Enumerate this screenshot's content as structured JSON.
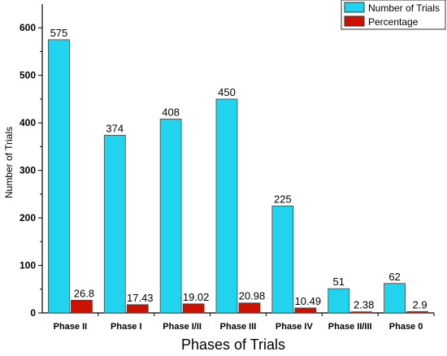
{
  "chart_data": {
    "type": "bar",
    "xlabel": "Phases of Trials",
    "ylabel": "Number of Trials",
    "ylim": [
      0,
      650
    ],
    "yticks": [
      "0",
      "100",
      "200",
      "300",
      "400",
      "500",
      "600"
    ],
    "legend_position": "top-right",
    "categories": [
      "Phase II",
      "Phase I",
      "Phase I/II",
      "Phase III",
      "Phase IV",
      "Phase II/III",
      "Phase 0"
    ],
    "series": [
      {
        "name": "Number of Trials",
        "color": "#22d3ee",
        "values": [
          575,
          374,
          408,
          450,
          225,
          51,
          62
        ],
        "labels": [
          "575",
          "374",
          "408",
          "450",
          "225",
          "51",
          "62"
        ]
      },
      {
        "name": "Percentage",
        "color": "#cc1100",
        "values": [
          26.8,
          17.43,
          19.02,
          20.98,
          10.49,
          2.38,
          2.9
        ],
        "labels": [
          "26.8",
          "17.43",
          "19.02",
          "20.98",
          "10.49",
          "2.38",
          "2.9"
        ]
      }
    ]
  }
}
